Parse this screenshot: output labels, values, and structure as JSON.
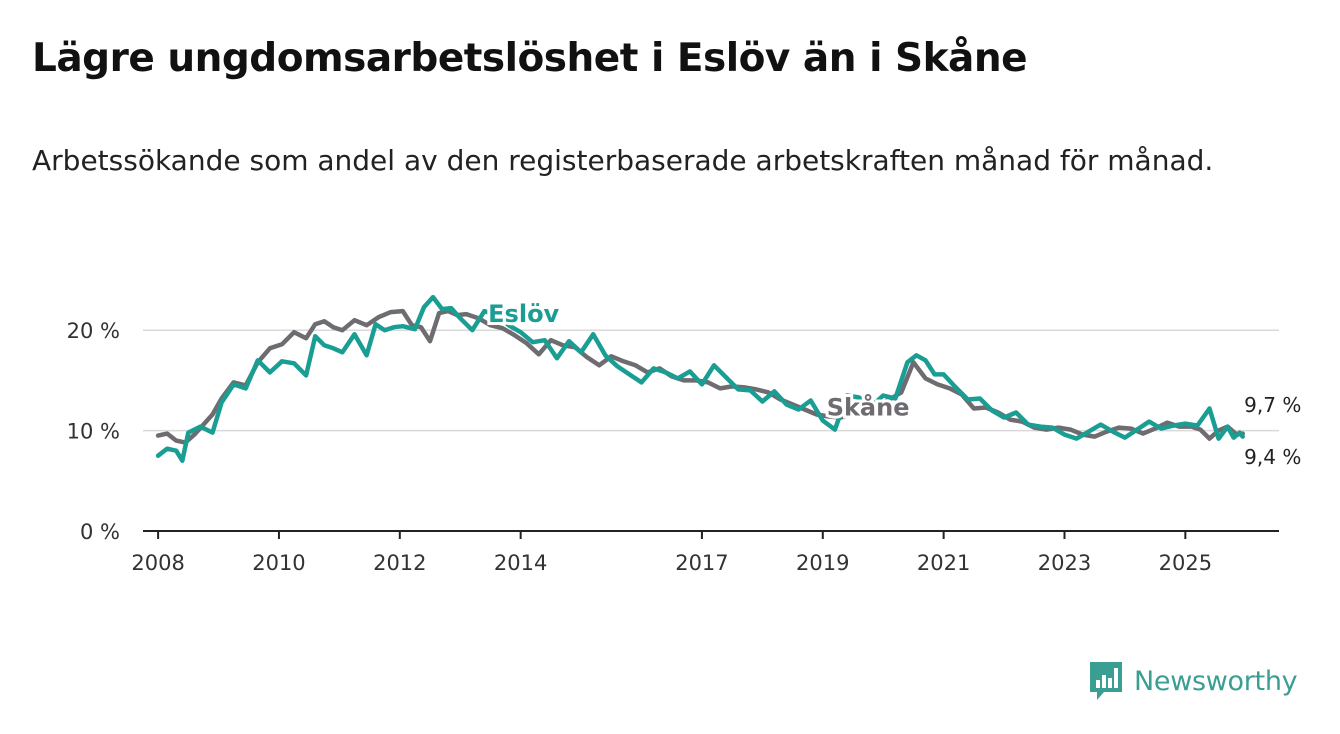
{
  "title": "Lägre ungdomsarbetslöshet i Eslöv än i Skåne",
  "subtitle": "Arbetssökande som andel av den registerbaserade arbetskraften månad för månad.",
  "brand": {
    "name": "Newsworthy",
    "logo_icon": "bar-chart-speech-bubble-icon",
    "color": "#3a9e93"
  },
  "chart_data": {
    "type": "line",
    "ylabel": "",
    "xlabel": "",
    "ylim": [
      0,
      25
    ],
    "xlim": [
      2007.75,
      2026.55
    ],
    "y_ticks": [
      {
        "value": 0,
        "label": "0 %"
      },
      {
        "value": 10,
        "label": "10 %"
      },
      {
        "value": 20,
        "label": "20 %"
      }
    ],
    "x_ticks": [
      {
        "value": 2008,
        "label": "2008"
      },
      {
        "value": 2010,
        "label": "2010"
      },
      {
        "value": 2012,
        "label": "2012"
      },
      {
        "value": 2014,
        "label": "2014"
      },
      {
        "value": 2017,
        "label": "2017"
      },
      {
        "value": 2019,
        "label": "2019"
      },
      {
        "value": 2021,
        "label": "2021"
      },
      {
        "value": 2023,
        "label": "2023"
      },
      {
        "value": 2025,
        "label": "2025"
      }
    ],
    "series": [
      {
        "name": "Skåne",
        "color": "#6e6c70",
        "label": {
          "text": "Skåne",
          "x": 2019.75,
          "y": 11.5
        },
        "end_label": "9,7 %",
        "x": [
          2008.0,
          2008.15,
          2008.3,
          2008.45,
          2008.6,
          2008.75,
          2008.9,
          2009.05,
          2009.25,
          2009.45,
          2009.65,
          2009.85,
          2010.05,
          2010.25,
          2010.45,
          2010.6,
          2010.75,
          2010.9,
          2011.05,
          2011.25,
          2011.45,
          2011.65,
          2011.85,
          2012.05,
          2012.2,
          2012.35,
          2012.5,
          2012.65,
          2012.8,
          2012.95,
          2013.1,
          2013.3,
          2013.5,
          2013.7,
          2013.9,
          2014.1,
          2014.3,
          2014.5,
          2014.7,
          2014.9,
          2015.1,
          2015.3,
          2015.5,
          2015.7,
          2015.9,
          2016.1,
          2016.3,
          2016.5,
          2016.7,
          2016.9,
          2017.1,
          2017.3,
          2017.5,
          2017.7,
          2017.9,
          2018.1,
          2018.3,
          2018.5,
          2018.7,
          2018.9,
          2019.1,
          2019.3,
          2019.5,
          2019.7,
          2019.9,
          2020.1,
          2020.3,
          2020.5,
          2020.7,
          2020.9,
          2021.1,
          2021.3,
          2021.5,
          2021.7,
          2021.9,
          2022.1,
          2022.3,
          2022.5,
          2022.7,
          2022.9,
          2023.1,
          2023.3,
          2023.5,
          2023.7,
          2023.9,
          2024.1,
          2024.3,
          2024.5,
          2024.7,
          2024.9,
          2025.1,
          2025.25,
          2025.4,
          2025.55,
          2025.7,
          2025.85,
          2025.95
        ],
        "y": [
          9.5,
          9.7,
          9.0,
          8.8,
          9.6,
          10.6,
          11.6,
          13.2,
          14.8,
          14.5,
          16.8,
          18.2,
          18.6,
          19.8,
          19.2,
          20.6,
          20.9,
          20.3,
          20.0,
          21.0,
          20.5,
          21.3,
          21.8,
          21.9,
          20.5,
          20.3,
          18.9,
          21.7,
          21.9,
          21.5,
          21.6,
          21.2,
          20.5,
          20.2,
          19.5,
          18.7,
          17.6,
          19.0,
          18.5,
          18.3,
          17.3,
          16.5,
          17.4,
          16.9,
          16.5,
          15.8,
          16.2,
          15.4,
          15.0,
          15.0,
          14.8,
          14.2,
          14.4,
          14.3,
          14.1,
          13.8,
          13.1,
          12.6,
          12.1,
          11.6,
          11.4,
          11.3,
          11.6,
          11.9,
          12.5,
          13.1,
          13.8,
          16.8,
          15.2,
          14.6,
          14.2,
          13.6,
          12.2,
          12.3,
          11.8,
          11.1,
          10.9,
          10.3,
          10.1,
          10.3,
          10.1,
          9.6,
          9.4,
          9.9,
          10.3,
          10.2,
          9.7,
          10.2,
          10.8,
          10.4,
          10.4,
          10.1,
          9.2,
          10.0,
          10.4,
          9.6,
          9.7
        ]
      },
      {
        "name": "Eslöv",
        "color": "#1a9e94",
        "label": {
          "text": "Eslöv",
          "x": 2014.05,
          "y": 20.8
        },
        "end_label": "9,4 %",
        "x": [
          2008.0,
          2008.15,
          2008.3,
          2008.4,
          2008.5,
          2008.7,
          2008.9,
          2009.05,
          2009.25,
          2009.45,
          2009.65,
          2009.85,
          2010.05,
          2010.25,
          2010.45,
          2010.6,
          2010.75,
          2010.9,
          2011.05,
          2011.25,
          2011.45,
          2011.6,
          2011.75,
          2011.9,
          2012.05,
          2012.25,
          2012.4,
          2012.55,
          2012.7,
          2012.85,
          2013.0,
          2013.2,
          2013.4,
          2013.6,
          2013.8,
          2014.0,
          2014.2,
          2014.4,
          2014.6,
          2014.8,
          2015.0,
          2015.2,
          2015.4,
          2015.6,
          2015.8,
          2016.0,
          2016.2,
          2016.4,
          2016.6,
          2016.8,
          2017.0,
          2017.2,
          2017.4,
          2017.6,
          2017.8,
          2018.0,
          2018.2,
          2018.4,
          2018.6,
          2018.8,
          2019.0,
          2019.2,
          2019.4,
          2019.6,
          2019.8,
          2020.0,
          2020.2,
          2020.4,
          2020.55,
          2020.7,
          2020.85,
          2021.0,
          2021.2,
          2021.4,
          2021.6,
          2021.8,
          2022.0,
          2022.2,
          2022.4,
          2022.6,
          2022.8,
          2023.0,
          2023.2,
          2023.4,
          2023.6,
          2023.8,
          2024.0,
          2024.2,
          2024.4,
          2024.6,
          2024.8,
          2025.0,
          2025.2,
          2025.4,
          2025.55,
          2025.7,
          2025.8,
          2025.9,
          2025.95
        ],
        "y": [
          7.5,
          8.2,
          8.0,
          7.0,
          9.8,
          10.4,
          9.8,
          12.8,
          14.6,
          14.2,
          17.0,
          15.8,
          16.9,
          16.7,
          15.5,
          19.4,
          18.5,
          18.2,
          17.8,
          19.6,
          17.5,
          20.6,
          20.0,
          20.3,
          20.4,
          20.1,
          22.3,
          23.3,
          22.1,
          22.2,
          21.2,
          20.0,
          21.9,
          21.5,
          20.5,
          19.8,
          18.8,
          19.0,
          17.2,
          18.9,
          17.8,
          19.6,
          17.5,
          16.4,
          15.6,
          14.8,
          16.2,
          15.8,
          15.2,
          15.9,
          14.6,
          16.5,
          15.3,
          14.1,
          14.0,
          12.9,
          13.9,
          12.6,
          12.1,
          13.0,
          11.0,
          10.1,
          13.5,
          13.3,
          12.4,
          13.5,
          13.2,
          16.8,
          17.5,
          17.0,
          15.6,
          15.6,
          14.3,
          13.1,
          13.2,
          12.0,
          11.3,
          11.8,
          10.6,
          10.4,
          10.3,
          9.6,
          9.2,
          9.9,
          10.6,
          9.9,
          9.3,
          10.1,
          10.9,
          10.2,
          10.5,
          10.7,
          10.5,
          12.2,
          9.2,
          10.4,
          9.3,
          9.8,
          9.4
        ]
      }
    ]
  }
}
